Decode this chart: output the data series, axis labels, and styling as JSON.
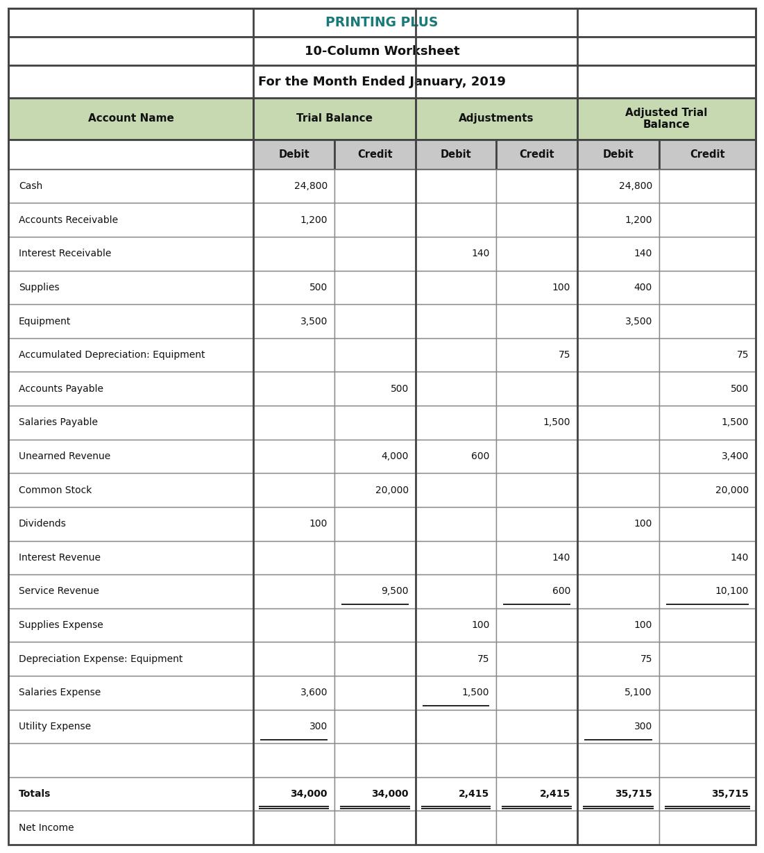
{
  "title1": "PRINTING PLUS",
  "title2": "10-Column Worksheet",
  "title3": "For the Month Ended January, 2019",
  "title1_color": "#1a7a7a",
  "header_bg": "#c6d9b0",
  "subheader_bg": "#c8c8c8",
  "rows": [
    [
      "Cash",
      "24,800",
      "",
      "",
      "",
      "24,800",
      ""
    ],
    [
      "Accounts Receivable",
      "1,200",
      "",
      "",
      "",
      "1,200",
      ""
    ],
    [
      "Interest Receivable",
      "",
      "",
      "140",
      "",
      "140",
      ""
    ],
    [
      "Supplies",
      "500",
      "",
      "",
      "100",
      "400",
      ""
    ],
    [
      "Equipment",
      "3,500",
      "",
      "",
      "",
      "3,500",
      ""
    ],
    [
      "Accumulated Depreciation: Equipment",
      "",
      "",
      "",
      "75",
      "",
      "75"
    ],
    [
      "Accounts Payable",
      "",
      "500",
      "",
      "",
      "",
      "500"
    ],
    [
      "Salaries Payable",
      "",
      "",
      "",
      "1,500",
      "",
      "1,500"
    ],
    [
      "Unearned Revenue",
      "",
      "4,000",
      "600",
      "",
      "",
      "3,400"
    ],
    [
      "Common Stock",
      "",
      "20,000",
      "",
      "",
      "",
      "20,000"
    ],
    [
      "Dividends",
      "100",
      "",
      "",
      "",
      "100",
      ""
    ],
    [
      "Interest Revenue",
      "",
      "",
      "",
      "140",
      "",
      "140"
    ],
    [
      "Service Revenue",
      "",
      "9,500",
      "",
      "600",
      "",
      "10,100"
    ],
    [
      "Supplies Expense",
      "",
      "",
      "100",
      "",
      "100",
      ""
    ],
    [
      "Depreciation Expense: Equipment",
      "",
      "",
      "75",
      "",
      "75",
      ""
    ],
    [
      "Salaries Expense",
      "3,600",
      "",
      "1,500",
      "",
      "5,100",
      ""
    ],
    [
      "Utility Expense",
      "300",
      "",
      "",
      "",
      "300",
      ""
    ],
    [
      "",
      "",
      "",
      "",
      "",
      "",
      ""
    ],
    [
      "Totals",
      "34,000",
      "34,000",
      "2,415",
      "2,415",
      "35,715",
      "35,715"
    ],
    [
      "Net Income",
      "",
      "",
      "",
      "",
      "",
      ""
    ]
  ],
  "single_underline": {
    "12": [
      2,
      4,
      6
    ],
    "15": [
      3
    ],
    "16": [
      1,
      5
    ]
  },
  "double_underline": {
    "18": [
      1,
      2,
      3,
      4,
      5,
      6
    ]
  },
  "bold_rows": [
    18
  ],
  "outer_border_color": "#444444",
  "grid_color": "#888888",
  "bg_white": "#ffffff"
}
